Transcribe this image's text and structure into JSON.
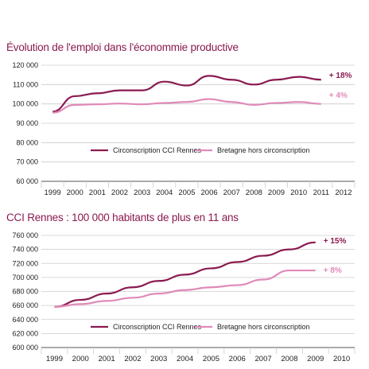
{
  "colors": {
    "primary": "#8a1a4f",
    "secondary": "#e08ab8",
    "grid": "#cccccc",
    "axis": "#555555"
  },
  "chart_data": [
    {
      "type": "line",
      "title": "Évolution de l'emploi dans l'économmie productive",
      "x": [
        "1999",
        "2000",
        "2001",
        "2002",
        "2003",
        "2004",
        "2005",
        "2006",
        "2007",
        "2008",
        "2009",
        "2010",
        "2011",
        "2012"
      ],
      "yticks": [
        "60 000",
        "70 000",
        "80 000",
        "90 000",
        "100 000",
        "110 000",
        "120 000"
      ],
      "ylim": [
        60000,
        120000
      ],
      "grid": true,
      "legend_position": "inside-bottom",
      "series": [
        {
          "name": "Circonscription CCI Rennes",
          "color": "#8a1a4f",
          "values": [
            96000,
            104000,
            105500,
            107000,
            107000,
            111500,
            109500,
            114500,
            112500,
            110000,
            112500,
            114000,
            112500,
            null
          ],
          "end_label": "+ 18%"
        },
        {
          "name": "Bretagne hors circonscription",
          "color": "#e08ab8",
          "values": [
            95500,
            99500,
            99800,
            100200,
            99800,
            100500,
            101000,
            102500,
            101000,
            99500,
            100500,
            101000,
            100000,
            null
          ],
          "end_label": "+ 4%"
        }
      ]
    },
    {
      "type": "line",
      "title": "CCI Rennes : 100 000 habitants de plus en 11 ans",
      "x": [
        "1999",
        "2000",
        "2001",
        "2002",
        "2003",
        "2004",
        "2005",
        "2006",
        "2007",
        "2008",
        "2009",
        "2010"
      ],
      "yticks": [
        "600 000",
        "620 000",
        "640 000",
        "660 000",
        "680 000",
        "700 000",
        "720 000",
        "740 000",
        "760 000"
      ],
      "ylim": [
        600000,
        760000
      ],
      "grid": true,
      "legend_position": "inside-bottom",
      "series": [
        {
          "name": "Circonscription CCI Rennes",
          "color": "#8a1a4f",
          "values": [
            658000,
            668000,
            677000,
            686000,
            695000,
            704000,
            713000,
            722000,
            731000,
            740000,
            750000,
            null
          ],
          "end_label": "+ 15%"
        },
        {
          "name": "Bretagne hors circonscription",
          "color": "#e08ab8",
          "values": [
            658000,
            662000,
            666500,
            671000,
            677000,
            682000,
            686000,
            689000,
            697000,
            710000,
            710000,
            null
          ],
          "end_label": "+ 8%"
        }
      ]
    }
  ]
}
